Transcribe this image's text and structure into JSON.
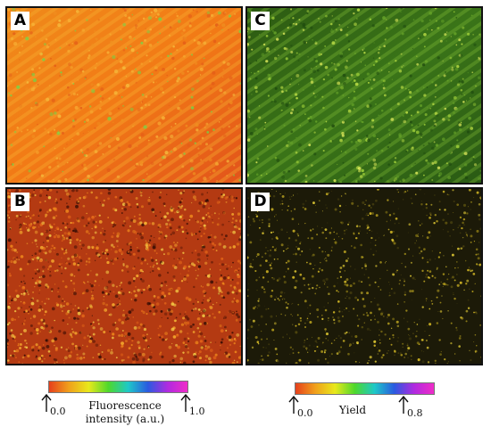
{
  "panels": [
    {
      "id": "A",
      "label": "A",
      "colormap": "fluorescence-orange"
    },
    {
      "id": "C",
      "label": "C",
      "colormap": "yield-green"
    },
    {
      "id": "B",
      "label": "B",
      "colormap": "fluorescence-dark-orange"
    },
    {
      "id": "D",
      "label": "D",
      "colormap": "yield-dark-yellow"
    }
  ],
  "colorbars": {
    "fluorescence": {
      "title_line1": "Fluorescence",
      "title_line2": "intensity (a.u.)",
      "min_label": "0.0",
      "max_label": "1.0",
      "colors": [
        "#e6401c",
        "#f0a01c",
        "#e8e81c",
        "#4ed82c",
        "#1ec8c8",
        "#2a5ae0",
        "#b02ae0",
        "#f02cc8"
      ]
    },
    "yield": {
      "title": "Yield",
      "min_label": "0.0",
      "max_label": "0.8",
      "colors": [
        "#e6401c",
        "#f0a01c",
        "#e8e81c",
        "#4ed82c",
        "#1ec8c8",
        "#2a5ae0",
        "#b02ae0",
        "#f02cc8"
      ]
    }
  }
}
